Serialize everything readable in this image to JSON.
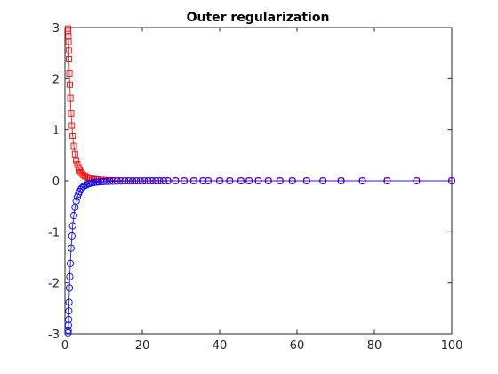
{
  "chart_data": {
    "type": "line",
    "title": "Outer regularization",
    "xlabel": "",
    "ylabel": "",
    "xlim": [
      0,
      100
    ],
    "ylim": [
      -3,
      3
    ],
    "xticks": [
      0,
      20,
      40,
      60,
      80,
      100
    ],
    "yticks": [
      -3,
      -2,
      -1,
      0,
      1,
      2,
      3
    ],
    "grid": false,
    "series": [
      {
        "marker": "square",
        "color": "#ff0000",
        "x": [
          0.8,
          0.85,
          0.9,
          0.95,
          1.0,
          1.05,
          1.15,
          1.25,
          1.4,
          1.6,
          1.8,
          2.0,
          2.3,
          2.6,
          2.9,
          3.2,
          3.5,
          3.8,
          4.1,
          4.4,
          4.8,
          5.2,
          5.6,
          6.0,
          6.5,
          7.0,
          7.5,
          8.1,
          8.7,
          9.3,
          10.0,
          10.8,
          11.6,
          12.5,
          13.5,
          14.5,
          15.5,
          16.5,
          17.5,
          18.5,
          19.5,
          20.5,
          21.5,
          22.5,
          23.5,
          24.5,
          25.5,
          26.6,
          28.6,
          30.8,
          33.3,
          35.7,
          37.0,
          40.0,
          42.6,
          45.5,
          47.6,
          50.0,
          52.6,
          55.6,
          58.8,
          62.5,
          66.7,
          71.4,
          76.9,
          83.3,
          90.9,
          100.0
        ],
        "y": [
          2.98,
          2.93,
          2.83,
          2.72,
          2.55,
          2.38,
          2.1,
          1.88,
          1.62,
          1.32,
          1.08,
          0.88,
          0.68,
          0.52,
          0.4,
          0.32,
          0.26,
          0.21,
          0.17,
          0.14,
          0.11,
          0.09,
          0.075,
          0.062,
          0.05,
          0.04,
          0.033,
          0.027,
          0.022,
          0.018,
          0.015,
          0.012,
          0.01,
          0.008,
          0.006,
          0.005,
          0.004,
          0.003,
          0.003,
          0.002,
          0.002,
          0.002,
          0.001,
          0.001,
          0.001,
          0.001,
          0.001,
          0,
          0,
          0,
          0,
          0,
          0,
          0,
          0,
          0,
          0,
          0,
          0,
          0,
          0,
          0,
          0,
          0,
          0,
          0,
          0,
          0
        ]
      },
      {
        "marker": "circle",
        "color": "#0000ff",
        "x": [
          0.8,
          0.85,
          0.9,
          0.95,
          1.0,
          1.05,
          1.15,
          1.25,
          1.4,
          1.6,
          1.8,
          2.0,
          2.3,
          2.6,
          2.9,
          3.2,
          3.5,
          3.8,
          4.1,
          4.4,
          4.8,
          5.2,
          5.6,
          6.0,
          6.5,
          7.0,
          7.5,
          8.1,
          8.7,
          9.3,
          10.0,
          10.8,
          11.6,
          12.5,
          13.5,
          14.5,
          15.5,
          16.5,
          17.5,
          18.5,
          19.5,
          20.5,
          21.5,
          22.5,
          23.5,
          24.5,
          25.5,
          26.6,
          28.6,
          30.8,
          33.3,
          35.7,
          37.0,
          40.0,
          42.6,
          45.5,
          47.6,
          50.0,
          52.6,
          55.6,
          58.8,
          62.5,
          66.7,
          71.4,
          76.9,
          83.3,
          90.9,
          100.0
        ],
        "y": [
          -2.98,
          -2.93,
          -2.83,
          -2.72,
          -2.55,
          -2.38,
          -2.1,
          -1.88,
          -1.62,
          -1.32,
          -1.08,
          -0.88,
          -0.68,
          -0.52,
          -0.4,
          -0.32,
          -0.26,
          -0.21,
          -0.17,
          -0.14,
          -0.11,
          -0.09,
          -0.075,
          -0.062,
          -0.05,
          -0.04,
          -0.033,
          -0.027,
          -0.022,
          -0.018,
          -0.015,
          -0.012,
          -0.01,
          -0.008,
          -0.006,
          -0.005,
          -0.004,
          -0.003,
          -0.003,
          -0.002,
          -0.002,
          -0.002,
          -0.001,
          -0.001,
          -0.001,
          -0.001,
          -0.001,
          0,
          0,
          0,
          0,
          0,
          0,
          0,
          0,
          0,
          0,
          0,
          0,
          0,
          0,
          0,
          0,
          0,
          0,
          0,
          0,
          0
        ]
      }
    ]
  }
}
